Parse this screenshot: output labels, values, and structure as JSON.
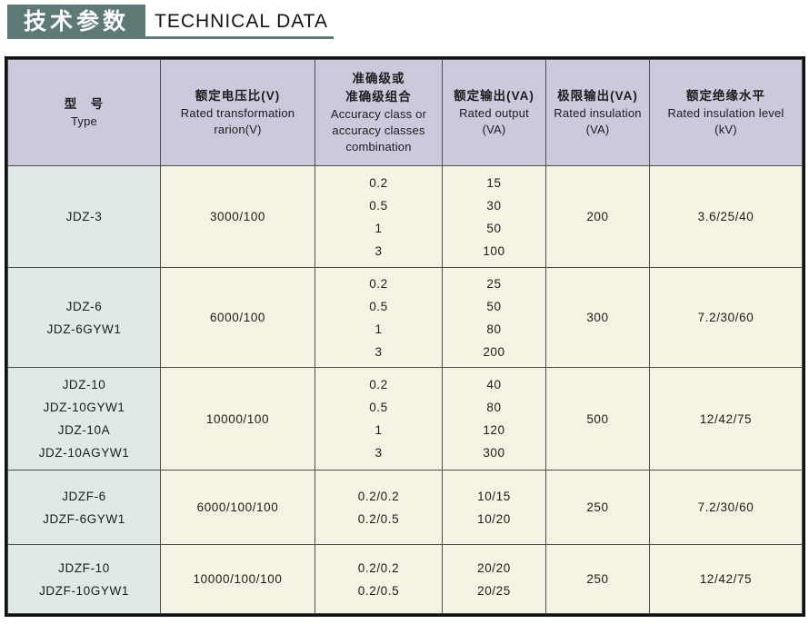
{
  "header": {
    "title_cn": "技术参数",
    "title_en": "TECHNICAL DATA"
  },
  "colors": {
    "accent_teal": "#5d7a77",
    "table_header_bg": "#cbc9dc",
    "type_column_bg": "#dfe9e5",
    "body_cell_bg": "#f4f3e4"
  },
  "table": {
    "columns": [
      {
        "cn_lines": [
          "型　号"
        ],
        "en_lines": [
          "Type"
        ]
      },
      {
        "cn_lines": [
          "额定电压比(V)"
        ],
        "en_lines": [
          "Rated transformation",
          "rarion(V)"
        ]
      },
      {
        "cn_lines": [
          "准确级或",
          "准确级组合"
        ],
        "en_lines": [
          "Accuracy class or",
          "accuracy classes",
          "combination"
        ]
      },
      {
        "cn_lines": [
          "额定输出(VA)"
        ],
        "en_lines": [
          "Rated output",
          "(VA)"
        ]
      },
      {
        "cn_lines": [
          "极限输出(VA)"
        ],
        "en_lines": [
          "Rated insulation",
          "(VA)"
        ]
      },
      {
        "cn_lines": [
          "额定绝缘水平"
        ],
        "en_lines": [
          "Rated insulation level",
          "(kV)"
        ]
      }
    ],
    "rows": [
      {
        "types": [
          "JDZ-3"
        ],
        "ratio": "3000/100",
        "accuracy": [
          "0.2",
          "0.5",
          "1",
          "3"
        ],
        "output": [
          "15",
          "30",
          "50",
          "100"
        ],
        "max_output": "200",
        "insulation_level": "3.6/25/40"
      },
      {
        "types": [
          "JDZ-6",
          "JDZ-6GYW1"
        ],
        "ratio": "6000/100",
        "accuracy": [
          "0.2",
          "0.5",
          "1",
          "3"
        ],
        "output": [
          "25",
          "50",
          "80",
          "200"
        ],
        "max_output": "300",
        "insulation_level": "7.2/30/60"
      },
      {
        "types": [
          "JDZ-10",
          "JDZ-10GYW1",
          "JDZ-10A",
          "JDZ-10AGYW1"
        ],
        "ratio": "10000/100",
        "accuracy": [
          "0.2",
          "0.5",
          "1",
          "3"
        ],
        "output": [
          "40",
          "80",
          "120",
          "300"
        ],
        "max_output": "500",
        "insulation_level": "12/42/75"
      },
      {
        "types": [
          "JDZF-6",
          "JDZF-6GYW1"
        ],
        "ratio": "6000/100/100",
        "accuracy": [
          "0.2/0.2",
          "0.2/0.5"
        ],
        "output": [
          "10/15",
          "10/20"
        ],
        "max_output": "250",
        "insulation_level": "7.2/30/60"
      },
      {
        "types": [
          "JDZF-10",
          "JDZF-10GYW1"
        ],
        "ratio": "10000/100/100",
        "accuracy": [
          "0.2/0.2",
          "0.2/0.5"
        ],
        "output": [
          "20/20",
          "20/25"
        ],
        "max_output": "250",
        "insulation_level": "12/42/75"
      }
    ]
  }
}
